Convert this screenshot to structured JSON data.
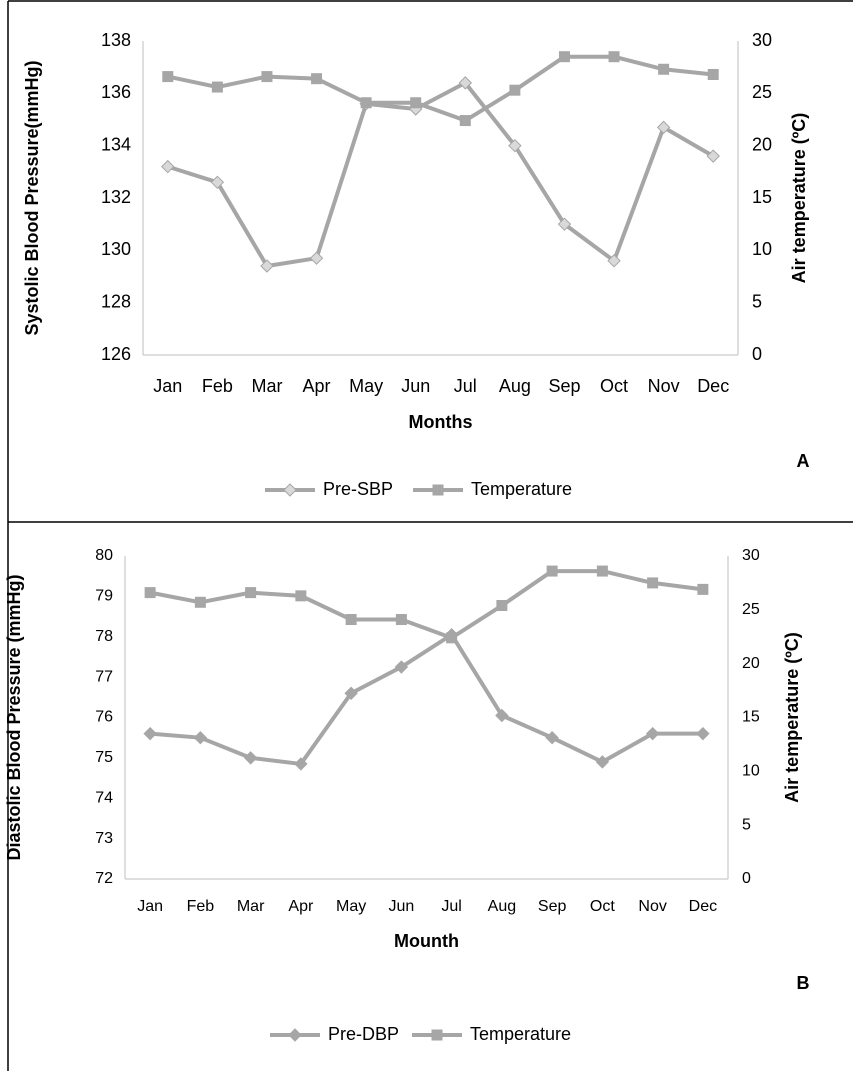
{
  "chart_data": [
    {
      "type": "line",
      "panel_label": "A",
      "x_label": "Months",
      "y_label": "Systolic Blood Pressure(mmHg)",
      "y2_label": "Air temperature (ºC)",
      "categories": [
        "Jan",
        "Feb",
        "Mar",
        "Apr",
        "May",
        "Jun",
        "Jul",
        "Aug",
        "Sep",
        "Oct",
        "Nov",
        "Dec"
      ],
      "series": [
        {
          "name": "Pre-SBP",
          "color": "#a6a6a6",
          "marker": "diamond",
          "marker_color": "#d9d9d9",
          "values": [
            133.2,
            132.6,
            129.4,
            129.7,
            135.6,
            135.4,
            136.4,
            134.0,
            131.0,
            129.6,
            134.7,
            133.6
          ]
        },
        {
          "name": "Temperature",
          "color": "#a6a6a6",
          "marker": "square",
          "marker_color": "#a6a6a6",
          "axis": "y2",
          "values": [
            26.6,
            25.6,
            26.6,
            26.4,
            24.1,
            24.1,
            22.4,
            25.3,
            28.5,
            28.5,
            27.3,
            26.8
          ]
        }
      ],
      "ylim": [
        126,
        138
      ],
      "yticks": [
        126,
        128,
        130,
        132,
        134,
        136,
        138
      ],
      "y2lim": [
        0,
        30
      ],
      "y2ticks": [
        0,
        5,
        10,
        15,
        20,
        25,
        30
      ],
      "grid": false,
      "legend": "bottom"
    },
    {
      "type": "line",
      "panel_label": "B",
      "x_label": "Mounth",
      "y_label": "Diastolic Blood Pressure (mmHg)",
      "y2_label": "Air temperature (ºC)",
      "categories": [
        "Jan",
        "Feb",
        "Mar",
        "Apr",
        "May",
        "Jun",
        "Jul",
        "Aug",
        "Sep",
        "Oct",
        "Nov",
        "Dec"
      ],
      "series": [
        {
          "name": "Pre-DBP",
          "color": "#a6a6a6",
          "marker": "diamond",
          "marker_color": "#a6a6a6",
          "values": [
            75.6,
            75.5,
            75.0,
            74.85,
            76.6,
            77.25,
            78.05,
            76.05,
            75.5,
            74.9,
            75.6,
            75.6
          ]
        },
        {
          "name": "Temperature",
          "color": "#a6a6a6",
          "marker": "square",
          "marker_color": "#a6a6a6",
          "axis": "y2",
          "values": [
            26.6,
            25.7,
            26.6,
            26.3,
            24.1,
            24.1,
            22.4,
            25.4,
            28.6,
            28.6,
            27.5,
            26.9
          ]
        }
      ],
      "ylim": [
        72,
        80
      ],
      "yticks": [
        72,
        73,
        74,
        75,
        76,
        77,
        78,
        79,
        80
      ],
      "y2lim": [
        0,
        30
      ],
      "y2ticks": [
        0,
        5,
        10,
        15,
        20,
        25,
        30
      ],
      "grid": false,
      "legend": "bottom"
    }
  ]
}
